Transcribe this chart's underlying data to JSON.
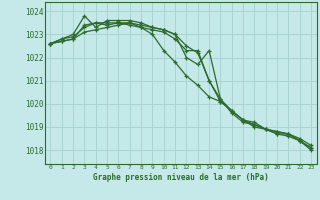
{
  "title": "Graphe pression niveau de la mer (hPa)",
  "background_color": "#c5e8e8",
  "grid_color": "#aad4d4",
  "line_color": "#2d6a2d",
  "xlim": [
    -0.5,
    23.5
  ],
  "ylim": [
    1017.4,
    1024.4
  ],
  "yticks": [
    1018,
    1019,
    1020,
    1021,
    1022,
    1023,
    1024
  ],
  "xticks": [
    0,
    1,
    2,
    3,
    4,
    5,
    6,
    7,
    8,
    9,
    10,
    11,
    12,
    13,
    14,
    15,
    16,
    17,
    18,
    19,
    20,
    21,
    22,
    23
  ],
  "series": [
    {
      "x": [
        0,
        1,
        2,
        3,
        4,
        5,
        6,
        7,
        8,
        9,
        10,
        11,
        12,
        13,
        14,
        15,
        16,
        17,
        18,
        19,
        20,
        21,
        22,
        23
      ],
      "y": [
        1022.6,
        1022.8,
        1022.9,
        1023.3,
        1023.5,
        1023.5,
        1023.5,
        1023.4,
        1023.3,
        1023.2,
        1023.1,
        1022.8,
        1022.3,
        1022.3,
        1021.0,
        1020.1,
        1019.7,
        1019.3,
        1019.1,
        1018.9,
        1018.8,
        1018.7,
        1018.4,
        1018.1
      ]
    },
    {
      "x": [
        0,
        1,
        2,
        3,
        4,
        5,
        6,
        7,
        8,
        9,
        10,
        11,
        12,
        13,
        14,
        15,
        16,
        17,
        18,
        19,
        20,
        21,
        22,
        23
      ],
      "y": [
        1022.6,
        1022.8,
        1023.0,
        1023.8,
        1023.3,
        1023.6,
        1023.6,
        1023.6,
        1023.5,
        1023.3,
        1023.2,
        1023.0,
        1022.5,
        1022.2,
        1021.0,
        1020.2,
        1019.7,
        1019.3,
        1019.2,
        1018.9,
        1018.8,
        1018.7,
        1018.5,
        1018.2
      ]
    },
    {
      "x": [
        0,
        1,
        2,
        3,
        4,
        5,
        6,
        7,
        8,
        9,
        10,
        11,
        12,
        13,
        14,
        15,
        16,
        17,
        18,
        19,
        20,
        21,
        22,
        23
      ],
      "y": [
        1022.6,
        1022.7,
        1022.8,
        1023.4,
        1023.5,
        1023.4,
        1023.5,
        1023.5,
        1023.4,
        1023.3,
        1023.2,
        1023.0,
        1022.0,
        1021.7,
        1022.3,
        1020.2,
        1019.6,
        1019.2,
        1019.1,
        1018.9,
        1018.7,
        1018.7,
        1018.4,
        1018.1
      ]
    },
    {
      "x": [
        0,
        1,
        2,
        3,
        4,
        5,
        6,
        7,
        8,
        9,
        10,
        11,
        12,
        13,
        14,
        15,
        16,
        17,
        18,
        19,
        20,
        21,
        22,
        23
      ],
      "y": [
        1022.6,
        1022.7,
        1022.8,
        1023.1,
        1023.2,
        1023.3,
        1023.4,
        1023.5,
        1023.3,
        1023.0,
        1022.3,
        1021.8,
        1021.2,
        1020.8,
        1020.3,
        1020.1,
        1019.7,
        1019.3,
        1019.0,
        1018.9,
        1018.7,
        1018.6,
        1018.4,
        1018.0
      ]
    }
  ]
}
